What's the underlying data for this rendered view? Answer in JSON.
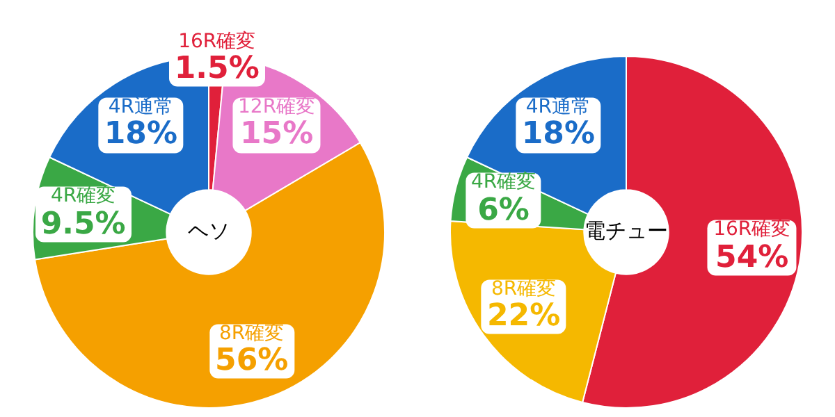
{
  "chart_data": [
    {
      "type": "donut",
      "title": "ヘソ",
      "categories": [
        "16R確変",
        "12R確変",
        "8R確変",
        "4R確変",
        "4R通常"
      ],
      "values": [
        1.5,
        15,
        56,
        9.5,
        18
      ],
      "value_labels": [
        "1.5%",
        "15%",
        "56%",
        "9.5%",
        "18%"
      ],
      "colors": [
        "#e0203a",
        "#e878c8",
        "#f5a000",
        "#3aa845",
        "#1a6cc8"
      ],
      "legend": false
    },
    {
      "type": "donut",
      "title": "電チュー",
      "categories": [
        "16R確変",
        "8R確変",
        "4R確変",
        "4R通常"
      ],
      "values": [
        54,
        22,
        6,
        18
      ],
      "value_labels": [
        "54%",
        "22%",
        "6%",
        "18%"
      ],
      "colors": [
        "#e0203a",
        "#f5b800",
        "#3aa845",
        "#1a6cc8"
      ],
      "legend": false
    }
  ]
}
